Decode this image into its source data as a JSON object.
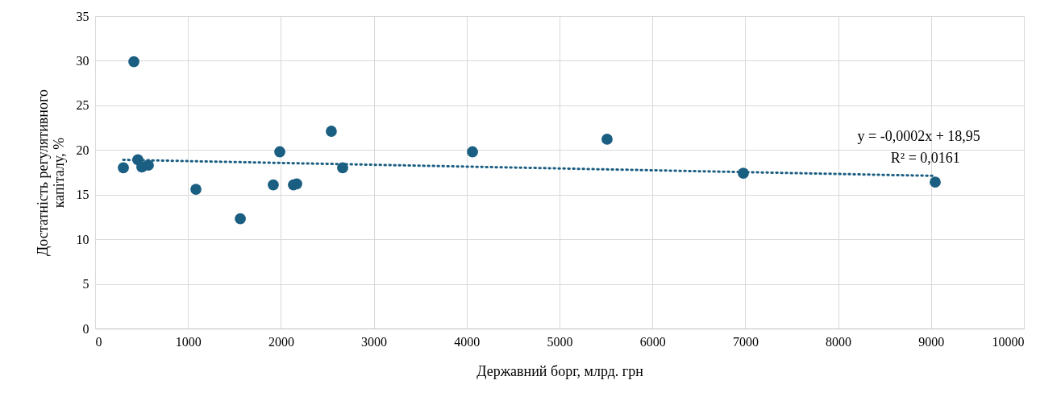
{
  "chart_data": {
    "type": "scatter",
    "xlabel": "Державний борг, млрд. грн",
    "ylabel": "Достатність регулятивного капіталу, %",
    "xlim": [
      0,
      10000
    ],
    "xticks": [
      0,
      1000,
      2000,
      3000,
      4000,
      5000,
      6000,
      7000,
      8000,
      9000,
      10000
    ],
    "ylim": [
      0,
      35
    ],
    "yticks": [
      0,
      5,
      10,
      15,
      20,
      25,
      30,
      35
    ],
    "grid": true,
    "annotations": [
      "y = -0,0002x + 18,95",
      "R² = 0,0161"
    ],
    "series": [
      {
        "marker": "circle",
        "color": "#1a5e82",
        "x": [
          304,
          417,
          460,
          503,
          573,
          1085,
          1563,
          1918,
          1988,
          2135,
          2170,
          2543,
          2665,
          4063,
          5512,
          6979,
          9045
        ],
        "values": [
          18.0,
          29.9,
          18.9,
          18.1,
          18.3,
          15.6,
          12.3,
          16.1,
          19.8,
          16.1,
          16.2,
          22.1,
          18.0,
          19.8,
          21.2,
          17.4,
          16.4
        ]
      },
      {
        "type": "line",
        "color": "#1a5e82",
        "line_style": "dotted",
        "x": [
          304,
          9045
        ],
        "values": [
          18.9,
          17.1
        ]
      }
    ]
  }
}
